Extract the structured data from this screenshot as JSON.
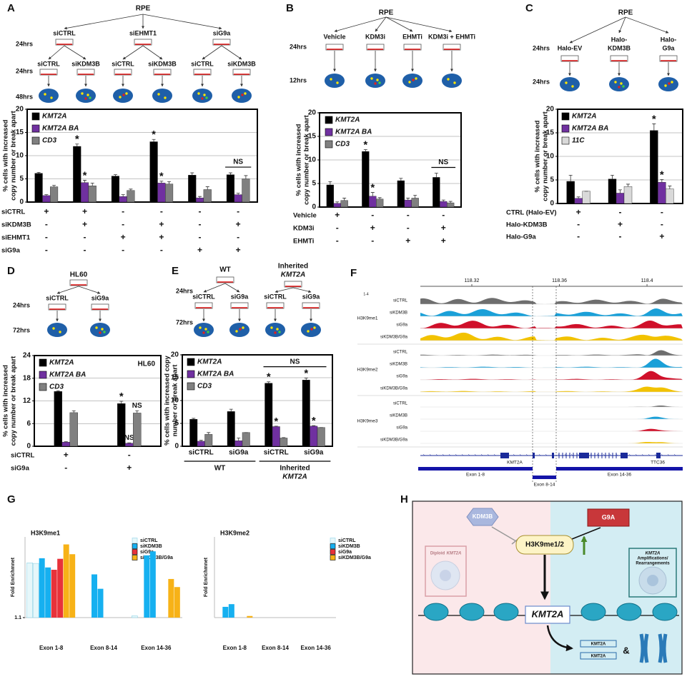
{
  "panels": [
    "A",
    "B",
    "C",
    "D",
    "E",
    "F",
    "G",
    "H"
  ],
  "diagrams": {
    "A": {
      "root": "RPE",
      "times": [
        "24hrs",
        "24hrs",
        "48hrs"
      ],
      "level1": [
        "siCTRL",
        "siEHMT1",
        "siG9a"
      ],
      "level2": [
        "siCTRL",
        "siKDM3B",
        "siCTRL",
        "siKDM3B",
        "siCTRL",
        "siKDM3B"
      ]
    },
    "B": {
      "root": "RPE",
      "times": [
        "24hrs",
        "12hrs"
      ],
      "level1": [
        "Vehicle",
        "KDM3i",
        "EHMTi",
        "KDM3i + EHMTi"
      ]
    },
    "C": {
      "root": "RPE",
      "times": [
        "24hrs",
        "24hrs"
      ],
      "level1": [
        [
          "Halo-EV"
        ],
        [
          "Halo-",
          "KDM3B"
        ],
        [
          "Halo-",
          "G9a"
        ]
      ]
    },
    "D": {
      "root": "HL60",
      "times": [
        "24hrs",
        "72hrs"
      ],
      "level1": [
        "siCTRL",
        "siG9a"
      ]
    },
    "E": {
      "roots": [
        [
          "WT"
        ],
        [
          "Inherited",
          "KMT2A"
        ]
      ],
      "times": [
        "24hrs",
        "72hrs"
      ],
      "level1": [
        "siCTRL",
        "siG9a",
        "siCTRL",
        "siG9a"
      ]
    }
  },
  "chart_data": [
    {
      "type": "bar",
      "y_label": [
        "% cells with increased",
        "copy number or break apart"
      ],
      "ylim": [
        0,
        20
      ],
      "yticks": [
        0,
        5,
        10,
        15,
        20
      ],
      "grid": true,
      "legend": "top-left",
      "series": [
        {
          "name": "KMT2A",
          "color": "#000000",
          "values": [
            6.2,
            12,
            5.6,
            13,
            5.8,
            5.9
          ],
          "errors": [
            0.2,
            0.5,
            0.3,
            0.5,
            0.5,
            0.4
          ],
          "annotations": [
            null,
            "*",
            null,
            "*",
            null,
            null
          ]
        },
        {
          "name": "KMT2A BA",
          "color": "#7030a0",
          "values": [
            1.4,
            4.2,
            1.2,
            4.1,
            0.9,
            1.6
          ],
          "errors": [
            0.2,
            0.5,
            0.4,
            0.4,
            0.3,
            0.3
          ],
          "annotations": [
            null,
            "*",
            null,
            "*",
            null,
            null
          ]
        },
        {
          "name": "CD3",
          "color": "#808080",
          "values": [
            3.3,
            3.5,
            2.5,
            3.9,
            2.7,
            5.0
          ],
          "errors": [
            0.3,
            0.6,
            0.3,
            0.5,
            0.6,
            0.7
          ]
        }
      ],
      "comparisons": [
        {
          "text": "NS",
          "categories": [
            5
          ]
        }
      ],
      "conditions": [
        {
          "name": "siCTRL",
          "marks": [
            "+",
            "+",
            "-",
            "-",
            "-",
            "-"
          ]
        },
        {
          "name": "siKDM3B",
          "marks": [
            "-",
            "+",
            "-",
            "+",
            "-",
            "+"
          ]
        },
        {
          "name": "siEHMT1",
          "marks": [
            "-",
            "-",
            "+",
            "+",
            "-",
            "-"
          ]
        },
        {
          "name": "siG9a",
          "marks": [
            "-",
            "-",
            "-",
            "-",
            "+",
            "+"
          ]
        }
      ]
    },
    {
      "type": "bar",
      "y_label": [
        "% cells with increased",
        "copy number or break apart"
      ],
      "ylim": [
        0,
        20
      ],
      "yticks": [
        0,
        5,
        10,
        15,
        20
      ],
      "grid": true,
      "legend": "top-left",
      "series": [
        {
          "name": "KMT2A",
          "color": "#000000",
          "values": [
            4.7,
            11.8,
            5.6,
            6.3
          ],
          "errors": [
            0.7,
            0.4,
            0.5,
            0.9
          ],
          "annotations": [
            null,
            "*",
            null,
            null
          ]
        },
        {
          "name": "KMT2A BA",
          "color": "#7030a0",
          "values": [
            0.8,
            2.3,
            1.5,
            1.2
          ],
          "errors": [
            0.3,
            0.8,
            0.4,
            0.3
          ],
          "annotations": [
            null,
            "*",
            null,
            null
          ]
        },
        {
          "name": "CD3",
          "color": "#808080",
          "values": [
            1.4,
            1.7,
            1.9,
            0.9
          ],
          "errors": [
            0.5,
            0.3,
            0.6,
            0.3
          ]
        }
      ],
      "comparisons": [
        {
          "text": "NS",
          "categories": [
            3
          ]
        }
      ],
      "conditions": [
        {
          "name": "Vehicle",
          "marks": [
            "+",
            "-",
            "-",
            "-"
          ]
        },
        {
          "name": "KDM3i",
          "marks": [
            "-",
            "+",
            "-",
            "+"
          ]
        },
        {
          "name": "EHMTi",
          "marks": [
            "-",
            "-",
            "+",
            "+"
          ]
        }
      ]
    },
    {
      "type": "bar",
      "y_label": [
        "% cells with increased",
        "copy number or break apart"
      ],
      "ylim": [
        0,
        20
      ],
      "yticks": [
        0,
        5,
        10,
        15,
        20
      ],
      "grid": true,
      "legend": "top-left",
      "series": [
        {
          "name": "KMT2A",
          "color": "#000000",
          "values": [
            4.7,
            5.2,
            15.5
          ],
          "errors": [
            1.3,
            0.8,
            1.4
          ],
          "annotations": [
            null,
            null,
            "*"
          ]
        },
        {
          "name": "KMT2A BA",
          "color": "#7030a0",
          "values": [
            1.1,
            2.2,
            4.5
          ],
          "errors": [
            0.3,
            0.7,
            0.6
          ],
          "annotations": [
            null,
            null,
            "*"
          ]
        },
        {
          "name": "11C",
          "color": "#d9d9d9",
          "values": [
            2.6,
            3.6,
            3.1
          ],
          "errors": [
            0,
            0.5,
            0.6
          ]
        }
      ],
      "conditions": [
        {
          "name": "CTRL (Halo-EV)",
          "marks": [
            "+",
            "-",
            "-"
          ]
        },
        {
          "name": "Halo-KDM3B",
          "marks": [
            "-",
            "+",
            "-"
          ]
        },
        {
          "name": "Halo-G9a",
          "marks": [
            "-",
            "-",
            "+"
          ]
        }
      ]
    },
    {
      "type": "bar",
      "note": "HL60",
      "y_label": [
        "% cells with increased",
        "copy number or break apart"
      ],
      "ylim": [
        0,
        24
      ],
      "yticks": [
        0,
        6,
        12,
        18,
        24
      ],
      "grid": true,
      "legend": "top-left",
      "series": [
        {
          "name": "KMT2A",
          "color": "#000000",
          "values": [
            14.5,
            11.3
          ],
          "errors": [
            0.2,
            0.6
          ],
          "annotations": [
            null,
            "*"
          ]
        },
        {
          "name": "KMT2A BA",
          "color": "#7030a0",
          "values": [
            1.1,
            0.8
          ],
          "errors": [
            0.1,
            0.1
          ],
          "annotations": [
            null,
            "NS"
          ]
        },
        {
          "name": "CD3",
          "color": "#808080",
          "values": [
            8.9,
            8.8
          ],
          "errors": [
            0.5,
            0.6
          ],
          "annotations": [
            null,
            "NS"
          ]
        }
      ],
      "conditions": [
        {
          "name": "siCTRL",
          "marks": [
            "+",
            "-"
          ]
        },
        {
          "name": "siG9a",
          "marks": [
            "-",
            "+"
          ]
        }
      ]
    },
    {
      "type": "bar",
      "y_label": [
        "% cells with increased copy",
        "number or break apart"
      ],
      "ylim": [
        0,
        20
      ],
      "yticks": [
        0,
        5,
        10,
        15,
        20
      ],
      "grid": true,
      "legend": "top-left",
      "categories": [
        "siCTRL",
        "siG9a",
        "siCTRL",
        "siG9a"
      ],
      "category_groups": [
        {
          "label": [
            "WT"
          ],
          "categories": [
            0,
            1
          ]
        },
        {
          "label": [
            "Inherited",
            "KMT2A"
          ],
          "categories": [
            2,
            3
          ]
        }
      ],
      "series": [
        {
          "name": "KMT2A",
          "color": "#000000",
          "values": [
            5.9,
            7.6,
            13.8,
            14.5
          ],
          "errors": [
            0.2,
            0.5,
            0.3,
            0.4
          ],
          "annotations": [
            null,
            null,
            "*",
            "*"
          ]
        },
        {
          "name": "KMT2A BA",
          "color": "#7030a0",
          "values": [
            1.1,
            1.2,
            4.3,
            4.4
          ],
          "errors": [
            0.2,
            0.6,
            0.1,
            0.1
          ],
          "annotations": [
            null,
            null,
            "*",
            "*"
          ]
        },
        {
          "name": "CD3",
          "color": "#808080",
          "values": [
            2.6,
            3.0,
            1.8,
            4.1
          ],
          "errors": [
            0.4,
            0,
            0.1,
            0
          ]
        }
      ],
      "comparisons": [
        {
          "text": "NS",
          "categories": [
            2,
            3
          ]
        }
      ]
    },
    {
      "type": "grouped-replicate-bar",
      "title": "H3K9me1",
      "y_label": [
        "Fold Enrichmnet"
      ],
      "ylim": [
        1.1,
        2.5
      ],
      "yticks": [
        1.1
      ],
      "grid": false,
      "legend": "top-right",
      "categories": [
        "Exon 1-8",
        "Exon 8-14",
        "Exon 14-36"
      ],
      "series": [
        {
          "name": "siCTRL",
          "color": "#e6f7fa",
          "edge": "#8fd3e6",
          "values": [
            [
              2.05,
              2.04
            ],
            [
              null,
              null
            ],
            [
              1.13,
              null
            ]
          ]
        },
        {
          "name": "siKDM3B",
          "color": "#16b0f0",
          "values": [
            [
              2.13,
              1.97
            ],
            [
              1.85,
              1.6
            ],
            [
              2.18,
              2.25
            ]
          ]
        },
        {
          "name": "siG9a",
          "color": "#e8323a",
          "values": [
            [
              1.93,
              2.12
            ],
            [
              null,
              null
            ],
            [
              null,
              null
            ]
          ]
        },
        {
          "name": "siKDM3B/G9a",
          "color": "#f7b217",
          "values": [
            [
              2.37,
              2.2
            ],
            [
              null,
              null
            ],
            [
              1.77,
              1.63
            ]
          ]
        }
      ]
    },
    {
      "type": "grouped-replicate-bar",
      "title": "H3K9me2",
      "y_label": [
        "Fold Enrichmnet"
      ],
      "ylim": [
        1.0,
        2.5
      ],
      "yticks": [],
      "grid": false,
      "legend": "top-right",
      "categories": [
        "Exon 1-8",
        "Exon 8-14",
        "Exon 14-36"
      ],
      "series": [
        {
          "name": "siCTRL",
          "color": "#e6f7fa",
          "edge": "#8fd3e6",
          "values": [
            [
              null,
              null
            ],
            [
              null,
              null
            ],
            [
              null,
              null
            ]
          ]
        },
        {
          "name": "siKDM3B",
          "color": "#16b0f0",
          "values": [
            [
              1.2,
              1.25
            ],
            [
              null,
              null
            ],
            [
              null,
              null
            ]
          ]
        },
        {
          "name": "siG9a",
          "color": "#e8323a",
          "values": [
            [
              null,
              null
            ],
            [
              null,
              null
            ],
            [
              null,
              null
            ]
          ]
        },
        {
          "name": "siKDM3B/G9a",
          "color": "#f7b217",
          "values": [
            [
              1.03,
              null
            ],
            [
              null,
              null
            ],
            [
              null,
              null
            ]
          ]
        }
      ]
    }
  ],
  "tracks": {
    "scale": "1-4",
    "xlim": [
      118.2965,
      118.4163
    ],
    "xticks": [
      118.32,
      118.36,
      118.4
    ],
    "colors": [
      "#6e6e6e",
      "#1aa0d8",
      "#d0102a",
      "#f2c200"
    ],
    "groups": [
      {
        "mark": "H3K9me1",
        "samples": [
          "siCTRL",
          "siKDM3B",
          "siG9a",
          "siKDM3B/G9a"
        ]
      },
      {
        "mark": "H3K9me2",
        "samples": [
          "siCTRL",
          "siKDM3B",
          "siG9a",
          "siKDM3B/G9a"
        ]
      },
      {
        "mark": "H3K9me3",
        "samples": [
          "siCTRL",
          "siKDM3B",
          "siG9a",
          "siKDM3B/G9a"
        ]
      }
    ],
    "genes": [
      "KMT2A",
      "TTC36"
    ],
    "exons": [
      "Exon 1-8",
      "Exon 8-14",
      "Exon 14-36"
    ]
  },
  "model": {
    "kdm3b": "KDM3B",
    "g9a": "G9A",
    "mark": "H3K9me1/2",
    "diploid": "Diploid",
    "diploid_gene": "KMT2A",
    "amplified": [
      "KMT2A",
      "Amplifications/",
      "Rearrangements"
    ],
    "gene": "KMT2A",
    "dna_labels": [
      "KMT2A",
      "KMT2A"
    ],
    "and": "&"
  }
}
